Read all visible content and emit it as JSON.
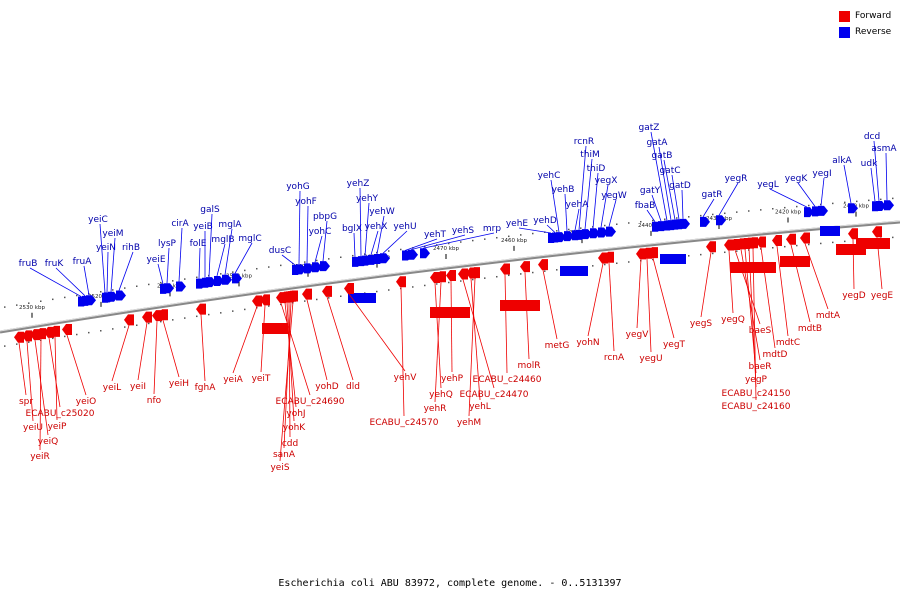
{
  "legend": {
    "forward_label": "Forward",
    "reverse_label": "Reverse",
    "forward_color": "#ff0000",
    "reverse_color": "#0000ff"
  },
  "caption": "Escherichia coli ABU 83972, complete genome. - 0..5131397",
  "colors": {
    "forward": "#ee0000",
    "reverse": "#0000ee",
    "backbone": "#888888"
  },
  "scale_ticks": [
    "2530 kbp",
    "2520 kbp",
    "2510 kbp",
    "2500 kbp",
    "2490 kbp",
    "2480 kbp",
    "2470 kbp",
    "2460 kbp",
    "2450 kbp",
    "2440 kbp",
    "2430 kbp",
    "2420 kbp",
    "2410 kbp"
  ],
  "reverse_genes": [
    "fruB",
    "fruK",
    "fruA",
    "yeiC",
    "yeiN",
    "yeiM",
    "rihB",
    "yeiE",
    "lysP",
    "cirA",
    "folE",
    "yeiB",
    "galS",
    "mglB",
    "mglA",
    "mglC",
    "dusC",
    "yohG",
    "yohF",
    "yohC",
    "pbpG",
    "bglX",
    "yehZ",
    "yehY",
    "yehX",
    "yehW",
    "yehU",
    "yehT",
    "yehS",
    "mrp",
    "yehE",
    "yehD",
    "yehC",
    "yehB",
    "yehA",
    "rcnR",
    "thiM",
    "thiD",
    "yegX",
    "yegW",
    "fbaB",
    "gatY",
    "gatZ",
    "gatA",
    "gatB",
    "gatC",
    "gatD",
    "gatR",
    "yegR",
    "yegL",
    "yegK",
    "yegI",
    "alkA",
    "udk",
    "dcd",
    "asmA"
  ],
  "forward_genes": [
    "spr",
    "yeiU",
    "yeiQ",
    "yeiR",
    "ECABU_c25020",
    "yeiP",
    "yeiO",
    "yeiL",
    "yeiI",
    "nfo",
    "yeiH",
    "fghA",
    "yeiA",
    "yeiT",
    "ECABU_c24690",
    "yohJ",
    "yohK",
    "cdd",
    "sanA",
    "yeiS",
    "yohD",
    "dld",
    "yehV",
    "ECABU_c24570",
    "yehQ",
    "yehR",
    "yehP",
    "ECABU_c24470",
    "yehL",
    "yehM",
    "ECABU_c24460",
    "molR",
    "metG",
    "yohN",
    "rcnA",
    "yegV",
    "yegU",
    "yegT",
    "yegS",
    "yegQ",
    "baeS",
    "baeR",
    "yegP",
    "ECABU_c24150",
    "ECABU_c24160",
    "mdtD",
    "mdtC",
    "mdtB",
    "mdtA",
    "yegD",
    "yegE"
  ]
}
